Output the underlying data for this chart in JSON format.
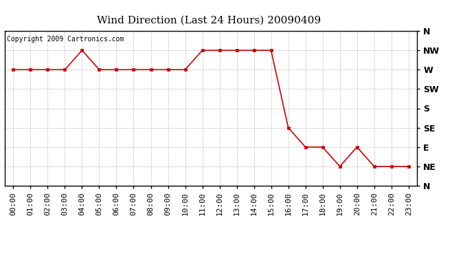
{
  "title": "Wind Direction (Last 24 Hours) 20090409",
  "copyright": "Copyright 2009 Cartronics.com",
  "line_color": "#cc0000",
  "marker": "s",
  "marker_size": 3,
  "background_color": "#ffffff",
  "grid_color": "#bbbbbb",
  "hours": [
    0,
    1,
    2,
    3,
    4,
    5,
    6,
    7,
    8,
    9,
    10,
    11,
    12,
    13,
    14,
    15,
    16,
    17,
    18,
    19,
    20,
    21,
    22,
    23
  ],
  "directions_deg": [
    270,
    270,
    270,
    270,
    315,
    270,
    270,
    270,
    270,
    270,
    270,
    315,
    315,
    315,
    315,
    315,
    135,
    90,
    90,
    45,
    90,
    45,
    45,
    45
  ],
  "yticks_deg": [
    360,
    315,
    270,
    225,
    180,
    135,
    90,
    45,
    0
  ],
  "ytick_labels": [
    "N",
    "NW",
    "W",
    "SW",
    "S",
    "SE",
    "E",
    "NE",
    "N"
  ],
  "ylim": [
    0,
    360
  ],
  "xlim": [
    -0.5,
    23.5
  ],
  "xtick_labels": [
    "00:00",
    "01:00",
    "02:00",
    "03:00",
    "04:00",
    "05:00",
    "06:00",
    "07:00",
    "08:00",
    "09:00",
    "10:00",
    "11:00",
    "12:00",
    "13:00",
    "14:00",
    "15:00",
    "16:00",
    "17:00",
    "18:00",
    "19:00",
    "20:00",
    "21:00",
    "22:00",
    "23:00"
  ],
  "title_fontsize": 11,
  "copyright_fontsize": 7,
  "tick_fontsize": 8,
  "ytick_fontsize": 9
}
